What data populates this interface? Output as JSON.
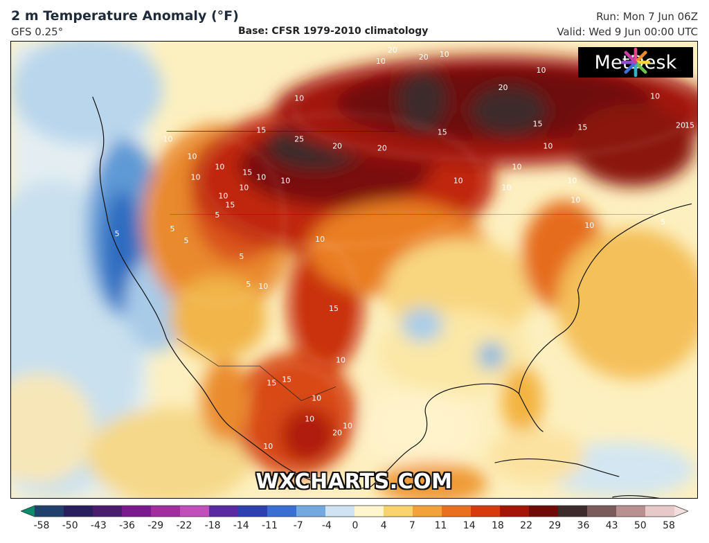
{
  "header": {
    "title": "2 m Temperature Anomaly (°F)",
    "model": "GFS 0.25°",
    "base": "Base: CFSR 1979-2010 climatology",
    "run": "Run: Mon 7 Jun 06Z",
    "valid": "Valid: Wed 9 Jun 00:00 UTC"
  },
  "brand": {
    "name": "MetDesk",
    "icon": "metdesk-starburst-icon"
  },
  "watermark": "WXCHARTS.COM",
  "contour_labels": [
    "20",
    "20",
    "20",
    "10",
    "10",
    "10",
    "10",
    "25",
    "20",
    "20",
    "15",
    "15",
    "15",
    "15",
    "10",
    "15",
    "10",
    "10",
    "10",
    "10",
    "10",
    "10",
    "10",
    "10",
    "10",
    "15",
    "15",
    "10",
    "10",
    "10",
    "10",
    "10",
    "15",
    "5",
    "5",
    "5",
    "5",
    "5",
    "5",
    "10",
    "10",
    "10",
    "10",
    "10",
    "10",
    "20",
    "15",
    "15",
    "10",
    "20",
    "5",
    "10"
  ],
  "colorbar": {
    "ticks": [
      "-58",
      "-50",
      "-43",
      "-36",
      "-29",
      "-22",
      "-18",
      "-14",
      "-11",
      "-7",
      "-4",
      "0",
      "4",
      "7",
      "11",
      "14",
      "18",
      "22",
      "29",
      "36",
      "43",
      "50",
      "58"
    ],
    "colors": [
      "#0c8a6c",
      "#21406b",
      "#2a1f5e",
      "#4a1c6e",
      "#7a1a8e",
      "#a02e9e",
      "#c04fbb",
      "#5a2aa0",
      "#2e3fb0",
      "#3a6fd2",
      "#74a9e0",
      "#cfe3f2",
      "#fff6cf",
      "#f8d36e",
      "#f2a23a",
      "#e8701f",
      "#d63b10",
      "#a31507",
      "#6e0a07",
      "#3d2a2a",
      "#7a5a5a",
      "#b8908f",
      "#e7c9c9",
      "#f3dede"
    ]
  },
  "colors": {
    "cold_deep": "#1d5fb0",
    "cold": "#5d9ad8",
    "neutral_cool": "#d9e9f3",
    "neutral_warm": "#fff1bd",
    "warm": "#f4b64a",
    "hot": "#e3671b",
    "very_hot": "#c3270d",
    "extreme": "#6e0c08",
    "peak": "#3a2c2c"
  }
}
